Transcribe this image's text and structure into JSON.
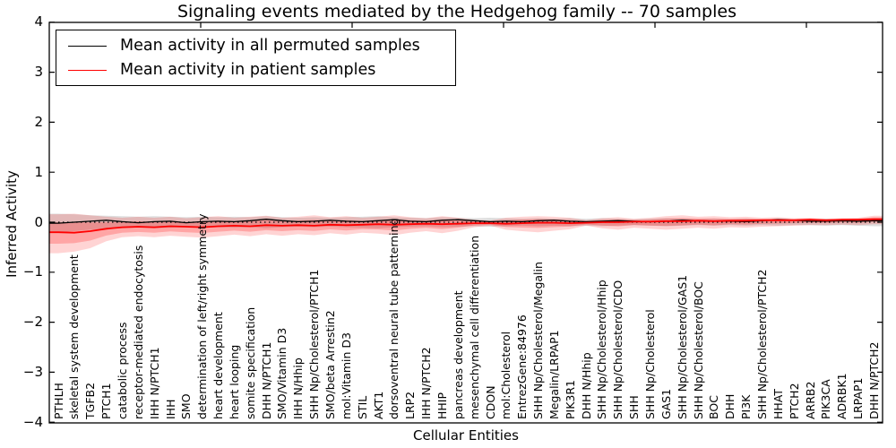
{
  "title": "Signaling events mediated by the Hedgehog family -- 70 samples",
  "legend": {
    "items": [
      {
        "label": "Mean activity in all permuted samples",
        "color": "#000000"
      },
      {
        "label": "Mean activity in patient samples",
        "color": "#ff0000"
      }
    ]
  },
  "axes": {
    "x_label": "Cellular Entities",
    "y_label": "Inferred Activity",
    "y_tick_labels": [
      "4",
      "3",
      "2",
      "1",
      "0",
      "−1",
      "−2",
      "−3",
      "−4"
    ],
    "y_tick_values": [
      4,
      3,
      2,
      1,
      0,
      -1,
      -2,
      -3,
      -4
    ]
  },
  "chart_data": {
    "type": "line",
    "title": "Signaling events mediated by the Hedgehog family -- 70 samples",
    "xlabel": "Cellular Entities",
    "ylabel": "Inferred Activity",
    "ylim": [
      -4,
      4
    ],
    "grid": false,
    "legend_position": "upper left",
    "x_tick_label_rotation": 90,
    "categories": [
      "PTHLH",
      "skeletal system development",
      "TGFB2",
      "PTCH1",
      "catabolic process",
      "receptor-mediated endocytosis",
      "IHH N/PTCH1",
      "IHH",
      "SMO",
      "determination of left/right symmetry",
      "heart development",
      "heart looping",
      "somite specification",
      "DHH N/PTCH1",
      "SMO/Vitamin D3",
      "IHH N/Hhip",
      "SHH Np/Cholesterol/PTCH1",
      "SMO/beta Arrestin2",
      "mol:Vitamin D3",
      "STIL",
      "AKT1",
      "dorsoventral neural tube patterning",
      "LRP2",
      "IHH N/PTCH2",
      "HHIP",
      "pancreas development",
      "mesenchymal cell differentiation",
      "CDON",
      "mol:Cholesterol",
      "EntrezGene:84976",
      "SHH Np/Cholesterol/Megalin",
      "Megalin/LRPAP1",
      "PIK3R1",
      "DHH N/Hhip",
      "SHH Np/Cholesterol/Hhip",
      "SHH Np/Cholesterol/CDO",
      "SHH",
      "SHH Np/Cholesterol",
      "GAS1",
      "SHH Np/Cholesterol/GAS1",
      "SHH Np/Cholesterol/BOC",
      "BOC",
      "DHH",
      "PI3K",
      "SHH Np/Cholesterol/PTCH2",
      "HHAT",
      "PTCH2",
      "ARRB2",
      "PIK3CA",
      "ADRBK1",
      "LRPAP1",
      "DHH N/PTCH2"
    ],
    "series": [
      {
        "name": "Mean activity in all permuted samples",
        "color": "#000000",
        "values": [
          -0.02,
          0.0,
          0.02,
          0.04,
          0.01,
          -0.01,
          0.01,
          0.02,
          -0.01,
          0.01,
          0.02,
          0.01,
          0.03,
          0.06,
          0.03,
          0.01,
          0.02,
          0.04,
          0.02,
          0.01,
          0.03,
          0.05,
          0.02,
          0.01,
          0.04,
          0.05,
          0.03,
          0.01,
          0.02,
          0.01,
          0.03,
          0.04,
          0.02,
          0.01,
          0.02,
          0.03,
          0.02,
          0.01,
          0.02,
          0.04,
          0.03,
          0.02,
          0.02,
          0.01,
          0.03,
          0.05,
          0.04,
          0.02,
          0.02,
          0.03,
          0.02,
          0.03
        ]
      },
      {
        "name": "Mean activity in patient samples",
        "color": "#ff0000",
        "values": [
          -0.2,
          -0.21,
          -0.18,
          -0.13,
          -0.1,
          -0.09,
          -0.1,
          -0.08,
          -0.09,
          -0.1,
          -0.08,
          -0.07,
          -0.08,
          -0.06,
          -0.07,
          -0.06,
          -0.07,
          -0.05,
          -0.06,
          -0.05,
          -0.04,
          -0.05,
          -0.04,
          -0.03,
          -0.04,
          -0.03,
          -0.02,
          -0.02,
          -0.03,
          -0.02,
          -0.01,
          -0.01,
          -0.02,
          -0.01,
          0.0,
          0.0,
          0.01,
          0.01,
          0.02,
          0.02,
          0.03,
          0.02,
          0.03,
          0.03,
          0.04,
          0.04,
          0.04,
          0.05,
          0.04,
          0.05,
          0.05,
          0.06
        ]
      }
    ],
    "bands": [
      {
        "name": "permuted samples std band",
        "color": "rgba(0,0,0,0.13)",
        "upper": [
          0.17,
          0.16,
          0.14,
          0.13,
          0.12,
          0.11,
          0.12,
          0.11,
          0.1,
          0.11,
          0.1,
          0.11,
          0.1,
          0.12,
          0.1,
          0.09,
          0.1,
          0.09,
          0.1,
          0.11,
          0.12,
          0.1,
          0.09,
          0.08,
          0.1,
          0.09,
          0.08,
          0.09,
          0.08,
          0.07,
          0.08,
          0.07,
          0.08,
          0.07,
          0.08,
          0.07,
          0.06,
          0.07,
          0.08,
          0.07,
          0.06,
          0.07,
          0.06,
          0.07,
          0.06,
          0.07,
          0.06,
          0.06,
          0.07,
          0.06,
          0.07,
          0.08
        ],
        "lower": [
          -0.2,
          -0.18,
          -0.15,
          -0.13,
          -0.12,
          -0.11,
          -0.12,
          -0.11,
          -0.1,
          -0.11,
          -0.1,
          -0.11,
          -0.1,
          -0.12,
          -0.1,
          -0.09,
          -0.1,
          -0.09,
          -0.1,
          -0.11,
          -0.12,
          -0.1,
          -0.09,
          -0.08,
          -0.1,
          -0.09,
          -0.08,
          -0.09,
          -0.08,
          -0.07,
          -0.08,
          -0.07,
          -0.08,
          -0.07,
          -0.08,
          -0.07,
          -0.06,
          -0.07,
          -0.08,
          -0.07,
          -0.06,
          -0.07,
          -0.06,
          -0.07,
          -0.06,
          -0.07,
          -0.06,
          -0.06,
          -0.07,
          -0.06,
          -0.07,
          -0.08
        ]
      },
      {
        "name": "patient samples std band",
        "color": "rgba(255,0,0,0.17)",
        "upper": [
          0.16,
          0.17,
          0.14,
          0.11,
          0.09,
          0.11,
          0.09,
          0.11,
          0.08,
          0.1,
          0.12,
          0.09,
          0.11,
          0.13,
          0.09,
          0.11,
          0.14,
          0.1,
          0.12,
          0.09,
          0.11,
          0.14,
          0.1,
          0.08,
          0.12,
          0.09,
          0.05,
          0.03,
          0.09,
          0.11,
          0.12,
          0.11,
          0.09,
          0.04,
          0.08,
          0.1,
          0.07,
          0.09,
          0.12,
          0.14,
          0.11,
          0.12,
          0.1,
          0.11,
          0.09,
          0.1,
          0.08,
          0.09,
          0.07,
          0.08,
          0.09,
          0.13
        ],
        "lower": [
          -0.62,
          -0.59,
          -0.52,
          -0.38,
          -0.3,
          -0.28,
          -0.3,
          -0.27,
          -0.29,
          -0.31,
          -0.28,
          -0.25,
          -0.28,
          -0.24,
          -0.27,
          -0.24,
          -0.26,
          -0.22,
          -0.25,
          -0.21,
          -0.23,
          -0.26,
          -0.21,
          -0.18,
          -0.22,
          -0.17,
          -0.1,
          -0.07,
          -0.15,
          -0.18,
          -0.2,
          -0.17,
          -0.14,
          -0.07,
          -0.12,
          -0.15,
          -0.11,
          -0.13,
          -0.15,
          -0.13,
          -0.11,
          -0.13,
          -0.1,
          -0.11,
          -0.09,
          -0.08,
          -0.07,
          -0.06,
          -0.06,
          -0.05,
          -0.06,
          -0.04
        ]
      }
    ],
    "zero_line": {
      "value": 0,
      "style": "dotted",
      "color": "#000000"
    }
  }
}
